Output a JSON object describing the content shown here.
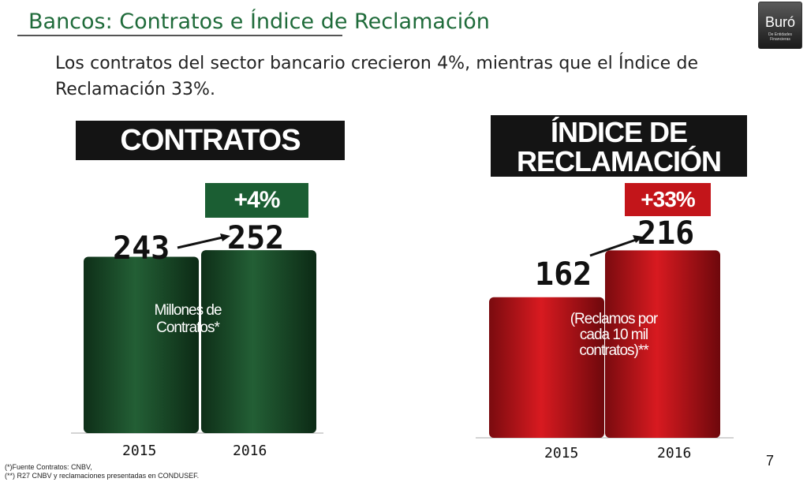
{
  "title": "Bancos: Contratos e Índice de Reclamación",
  "subtitle": "Los contratos del sector bancario crecieron 4%, mientras que el Índice de Reclamación 33%.",
  "logo": {
    "main": "Buró",
    "sub": "De Entidades Financieras"
  },
  "colors": {
    "green": "#1b5e33",
    "red": "#c3151a",
    "title": "#1f6b3a",
    "header_bg": "#141414"
  },
  "chart_data": [
    {
      "type": "bar",
      "title": "CONTRATOS",
      "categories": [
        "2015",
        "2016"
      ],
      "values": [
        243,
        252
      ],
      "value_labels": [
        "243",
        "252"
      ],
      "change": "+4%",
      "unit_label": "Millones de Contratos*",
      "color": "#1b5e33"
    },
    {
      "type": "bar",
      "title": "ÍNDICE DE RECLAMACIÓN",
      "categories": [
        "2015",
        "2016"
      ],
      "values": [
        162,
        216
      ],
      "value_labels": [
        "162",
        "216"
      ],
      "change": "+33%",
      "unit_label": "(Reclamos por cada 10 mil contratos)**",
      "color": "#c3151a"
    }
  ],
  "footnotes": [
    "(*)Fuente Contratos: CNBV,",
    "(**) R27 CNBV y reclamaciones presentadas en CONDUSEF."
  ],
  "page_number": "7"
}
